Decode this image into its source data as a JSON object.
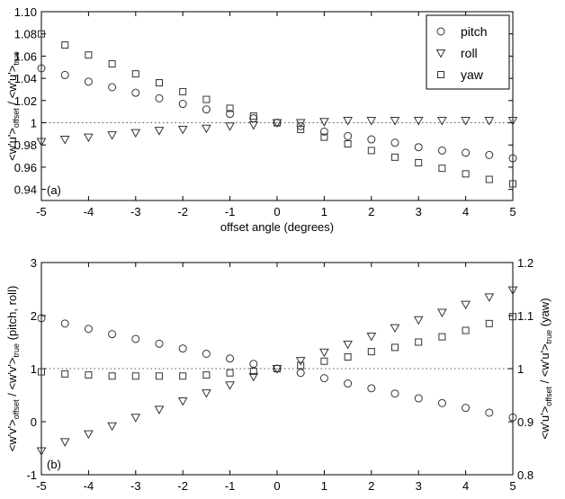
{
  "chart_data": [
    {
      "type": "scatter",
      "panel_tag": "(a)",
      "x": [
        -5,
        -4.5,
        -4,
        -3.5,
        -3,
        -2.5,
        -2,
        -1.5,
        -1,
        -0.5,
        0,
        0.5,
        1,
        1.5,
        2,
        2.5,
        3,
        3.5,
        4,
        4.5,
        5
      ],
      "series": [
        {
          "name": "pitch",
          "marker": "circle",
          "values": [
            1.049,
            1.043,
            1.037,
            1.032,
            1.027,
            1.022,
            1.017,
            1.012,
            1.008,
            1.004,
            1.0,
            0.997,
            0.992,
            0.988,
            0.985,
            0.982,
            0.978,
            0.975,
            0.973,
            0.971,
            0.968
          ]
        },
        {
          "name": "roll",
          "marker": "triangle-down",
          "values": [
            0.983,
            0.985,
            0.987,
            0.989,
            0.991,
            0.993,
            0.994,
            0.995,
            0.997,
            0.998,
            1.0,
            1.0,
            1.001,
            1.002,
            1.002,
            1.002,
            1.002,
            1.002,
            1.002,
            1.002,
            1.002
          ]
        },
        {
          "name": "yaw",
          "marker": "square",
          "values": [
            1.08,
            1.07,
            1.061,
            1.053,
            1.044,
            1.036,
            1.028,
            1.021,
            1.013,
            1.006,
            1.0,
            0.994,
            0.987,
            0.981,
            0.975,
            0.969,
            0.964,
            0.959,
            0.954,
            0.949,
            0.945
          ]
        }
      ],
      "reference_line": 1.0,
      "xlim": [
        -5,
        5
      ],
      "ylim": [
        0.93,
        1.1
      ],
      "x_ticks": [
        "-5",
        "-4",
        "-3",
        "-2",
        "-1",
        "0",
        "1",
        "2",
        "3",
        "4",
        "5"
      ],
      "y_ticks": [
        "0.94",
        "0.96",
        "0.98",
        "1",
        "1.02",
        "1.04",
        "1.06",
        "1.08",
        "1.10"
      ],
      "xlabel": "offset angle (degrees)",
      "ylabel": "<w'u'>offset / <w'u'>true",
      "legend": {
        "position": "top-right",
        "entries": [
          "pitch",
          "roll",
          "yaw"
        ]
      }
    },
    {
      "type": "scatter",
      "panel_tag": "(b)",
      "x": [
        -5,
        -4.5,
        -4,
        -3.5,
        -3,
        -2.5,
        -2,
        -1.5,
        -1,
        -0.5,
        0,
        0.5,
        1,
        1.5,
        2,
        2.5,
        3,
        3.5,
        4,
        4.5,
        5
      ],
      "series": [
        {
          "name": "pitch",
          "marker": "circle",
          "axis": "left",
          "values": [
            1.95,
            1.85,
            1.75,
            1.65,
            1.56,
            1.47,
            1.38,
            1.28,
            1.19,
            1.09,
            1.0,
            0.92,
            0.82,
            0.72,
            0.63,
            0.53,
            0.44,
            0.35,
            0.26,
            0.17,
            0.08
          ]
        },
        {
          "name": "roll",
          "marker": "triangle-down",
          "axis": "left",
          "values": [
            -0.55,
            -0.38,
            -0.23,
            -0.08,
            0.08,
            0.23,
            0.39,
            0.54,
            0.69,
            0.85,
            1.0,
            1.15,
            1.31,
            1.46,
            1.61,
            1.77,
            1.92,
            2.06,
            2.21,
            2.35,
            2.48
          ]
        },
        {
          "name": "yaw",
          "marker": "square",
          "axis": "right",
          "values": [
            0.994,
            0.99,
            0.988,
            0.986,
            0.986,
            0.986,
            0.986,
            0.988,
            0.992,
            0.995,
            1.0,
            1.006,
            1.014,
            1.022,
            1.032,
            1.04,
            1.05,
            1.06,
            1.072,
            1.085,
            1.098
          ]
        }
      ],
      "reference_line": 1.0,
      "xlim": [
        -5,
        5
      ],
      "ylim": [
        -1,
        3
      ],
      "y2lim": [
        0.8,
        1.2
      ],
      "x_ticks": [
        "-5",
        "-4",
        "-3",
        "-2",
        "-1",
        "0",
        "1",
        "2",
        "3",
        "4",
        "5"
      ],
      "y_ticks": [
        "-1",
        "0",
        "1",
        "2",
        "3"
      ],
      "y2_ticks": [
        "0.8",
        "0.9",
        "1",
        "1.1",
        "1.2"
      ],
      "xlabel": "offset angle (degrees)",
      "ylabel": "<w'v'>offset / <w'v'>true (pitch, roll)",
      "y2label": "<w'u'>offset / <w'u'>true (yaw)"
    }
  ]
}
